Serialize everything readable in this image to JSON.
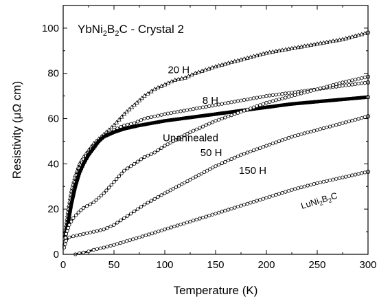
{
  "chart_data": {
    "type": "line",
    "title": "YbNi2B2C - Crystal 2",
    "title_parts": {
      "a": "YbNi",
      "s1": "2",
      "b": "B",
      "s2": "2",
      "c": "C - Crystal 2"
    },
    "xlabel": "Temperature (K)",
    "ylabel": "Resistivity (μΩ cm)",
    "xlim": [
      0,
      300
    ],
    "ylim": [
      0,
      110
    ],
    "x_ticks": [
      0,
      50,
      100,
      150,
      200,
      250,
      300
    ],
    "y_ticks": [
      0,
      20,
      40,
      60,
      80,
      100
    ],
    "grid": false,
    "legend": "none",
    "series": [
      {
        "name": "20 H",
        "color": "#000000",
        "marker": "open-triangle",
        "points": [
          [
            2,
            10
          ],
          [
            5,
            20
          ],
          [
            8,
            28
          ],
          [
            12,
            35
          ],
          [
            16,
            40
          ],
          [
            20,
            43
          ],
          [
            25,
            46
          ],
          [
            30,
            49
          ],
          [
            40,
            53
          ],
          [
            50,
            57
          ],
          [
            60,
            62
          ],
          [
            70,
            66
          ],
          [
            80,
            70
          ],
          [
            90,
            73
          ],
          [
            100,
            75
          ],
          [
            110,
            77
          ],
          [
            120,
            78
          ],
          [
            130,
            80
          ],
          [
            150,
            83
          ],
          [
            175,
            86
          ],
          [
            200,
            89
          ],
          [
            225,
            91
          ],
          [
            250,
            93
          ],
          [
            275,
            95
          ],
          [
            300,
            98
          ]
        ]
      },
      {
        "name": "8 H",
        "color": "#000000",
        "marker": "open-circle",
        "points": [
          [
            2,
            6
          ],
          [
            5,
            16
          ],
          [
            8,
            24
          ],
          [
            12,
            32
          ],
          [
            16,
            38
          ],
          [
            20,
            42
          ],
          [
            25,
            45
          ],
          [
            30,
            48
          ],
          [
            40,
            52
          ],
          [
            50,
            55
          ],
          [
            60,
            57
          ],
          [
            70,
            58
          ],
          [
            80,
            60
          ],
          [
            90,
            61
          ],
          [
            100,
            62
          ],
          [
            125,
            64
          ],
          [
            150,
            66
          ],
          [
            175,
            68
          ],
          [
            200,
            70
          ],
          [
            225,
            71.5
          ],
          [
            250,
            73
          ],
          [
            275,
            74.5
          ],
          [
            300,
            76
          ]
        ]
      },
      {
        "name": "Unannealed",
        "color": "#000000",
        "marker": "filled-square",
        "points": [
          [
            2,
            8
          ],
          [
            5,
            14
          ],
          [
            8,
            22
          ],
          [
            12,
            30
          ],
          [
            16,
            36
          ],
          [
            20,
            40
          ],
          [
            25,
            44
          ],
          [
            30,
            47
          ],
          [
            35,
            50
          ],
          [
            40,
            52
          ],
          [
            50,
            54
          ],
          [
            60,
            55.5
          ],
          [
            75,
            57
          ],
          [
            100,
            59
          ],
          [
            125,
            60.5
          ],
          [
            150,
            62
          ],
          [
            175,
            63.5
          ],
          [
            200,
            65
          ],
          [
            225,
            66.5
          ],
          [
            250,
            67.5
          ],
          [
            275,
            68.5
          ],
          [
            300,
            69.5
          ]
        ]
      },
      {
        "name": "50 H",
        "color": "#000000",
        "marker": "open-circle",
        "points": [
          [
            1,
            4
          ],
          [
            3,
            9
          ],
          [
            6,
            13
          ],
          [
            10,
            16
          ],
          [
            15,
            18.5
          ],
          [
            20,
            20.5
          ],
          [
            30,
            23
          ],
          [
            40,
            27
          ],
          [
            50,
            32
          ],
          [
            60,
            37
          ],
          [
            70,
            40
          ],
          [
            80,
            43
          ],
          [
            90,
            45
          ],
          [
            100,
            48
          ],
          [
            125,
            54
          ],
          [
            150,
            59
          ],
          [
            175,
            63
          ],
          [
            200,
            67
          ],
          [
            225,
            70
          ],
          [
            250,
            73
          ],
          [
            275,
            76
          ],
          [
            300,
            78.5
          ]
        ]
      },
      {
        "name": "150 H",
        "color": "#000000",
        "marker": "open-circle",
        "points": [
          [
            1,
            3
          ],
          [
            3,
            6
          ],
          [
            6,
            7.5
          ],
          [
            10,
            8
          ],
          [
            20,
            9
          ],
          [
            30,
            10
          ],
          [
            40,
            11
          ],
          [
            50,
            13
          ],
          [
            60,
            16
          ],
          [
            70,
            19
          ],
          [
            80,
            22
          ],
          [
            90,
            24.5
          ],
          [
            100,
            27
          ],
          [
            125,
            33
          ],
          [
            150,
            39
          ],
          [
            175,
            44
          ],
          [
            200,
            48
          ],
          [
            225,
            52
          ],
          [
            250,
            55
          ],
          [
            275,
            58
          ],
          [
            300,
            61
          ]
        ]
      },
      {
        "name": "LuNi2B2C",
        "color": "#000000",
        "marker": "open-circle",
        "points": [
          [
            12,
            0
          ],
          [
            16,
            0.5
          ],
          [
            20,
            0.8
          ],
          [
            25,
            1.3
          ],
          [
            30,
            2
          ],
          [
            40,
            3
          ],
          [
            50,
            4.2
          ],
          [
            75,
            7.5
          ],
          [
            100,
            11
          ],
          [
            125,
            14.5
          ],
          [
            150,
            18
          ],
          [
            175,
            21.5
          ],
          [
            200,
            25
          ],
          [
            225,
            28.5
          ],
          [
            250,
            31.5
          ],
          [
            275,
            34
          ],
          [
            300,
            36.5
          ]
        ]
      }
    ],
    "annotations": [
      {
        "text": "20 H",
        "x": 103,
        "y": 80
      },
      {
        "text": "8 H",
        "x": 137,
        "y": 66.5
      },
      {
        "text": "Unannealed",
        "x": 98,
        "y": 50
      },
      {
        "text": "50 H",
        "x": 135,
        "y": 43.5
      },
      {
        "text": "150 H",
        "x": 173,
        "y": 35.5
      },
      {
        "text": "LuNi2B2C",
        "x": 235,
        "y": 20
      }
    ],
    "luni_label_parts": {
      "a": "LuNi",
      "s1": "2",
      "b": "B",
      "s2": "2",
      "c": "C"
    }
  }
}
